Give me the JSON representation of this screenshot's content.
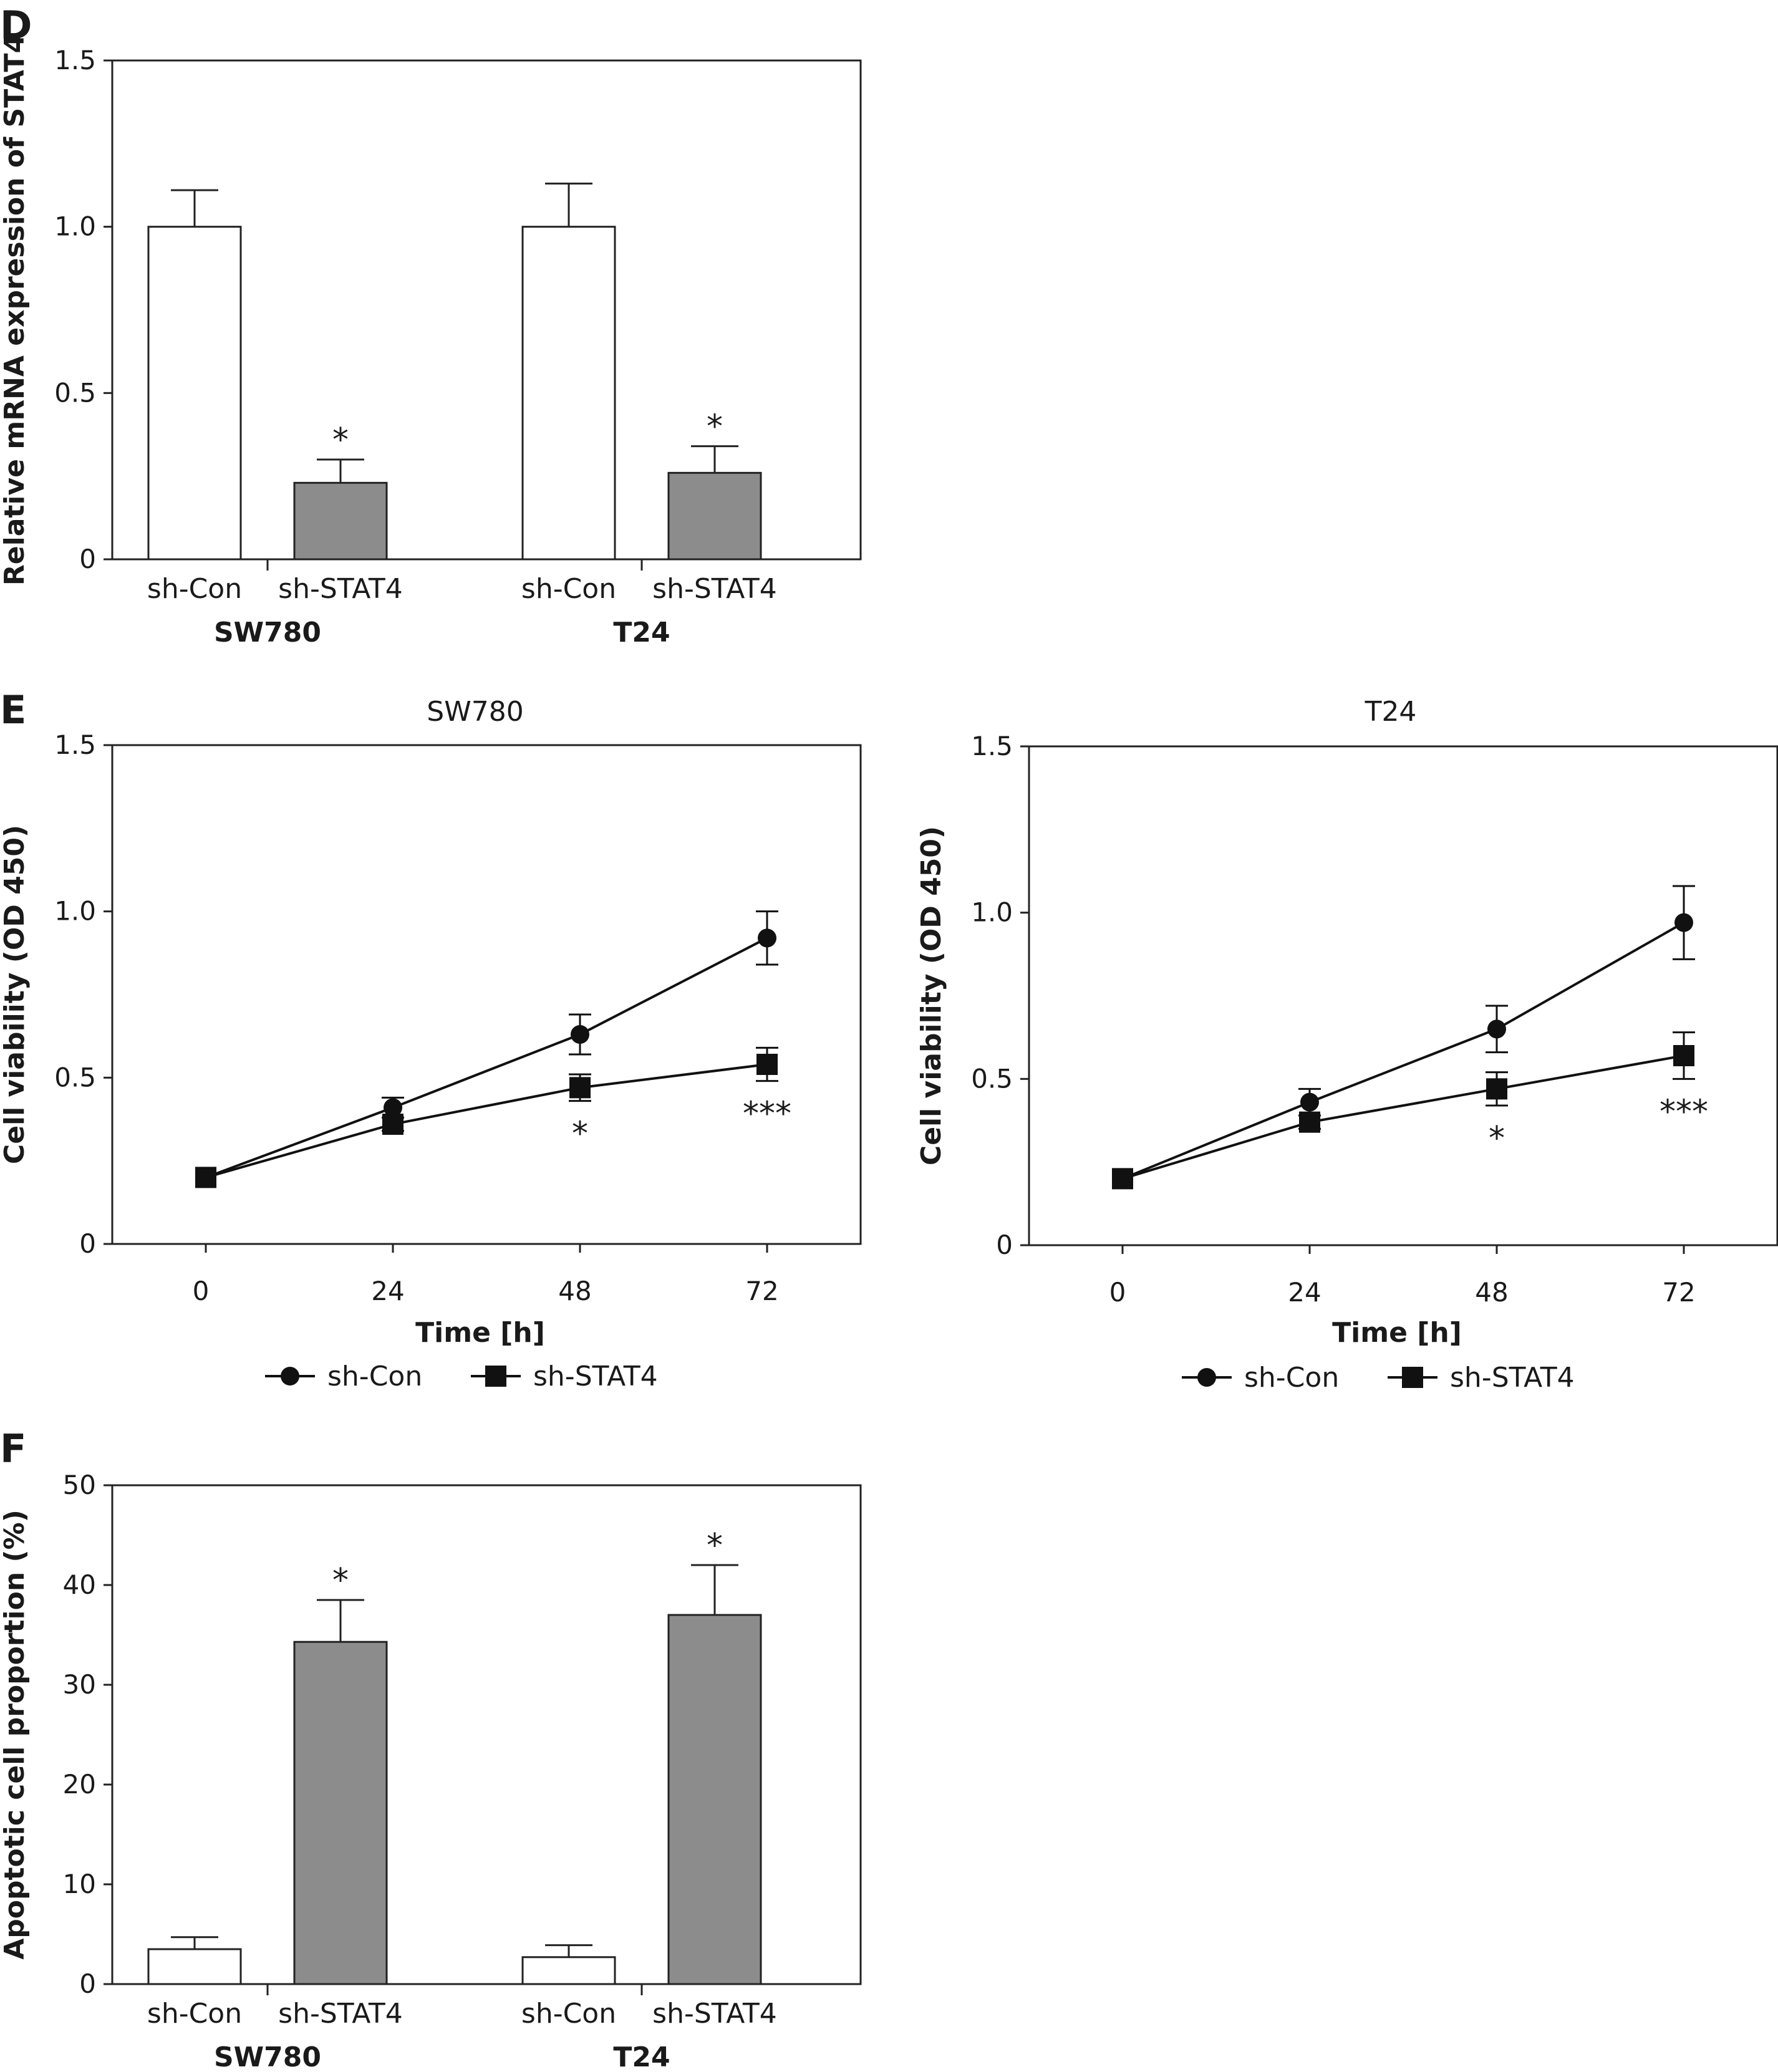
{
  "panels": [
    "D",
    "E",
    "F"
  ],
  "chart_data": [
    {
      "id": "D",
      "type": "bar",
      "title": "",
      "ylabel": "Relative mRNA expression of STAT4",
      "xlabel": "",
      "ylim": [
        0,
        1.5
      ],
      "yticks": [
        "0",
        "0.5",
        "1.0",
        "1.5"
      ],
      "groups": [
        "SW780",
        "T24"
      ],
      "categories": [
        "sh-Con",
        "sh-STAT4"
      ],
      "values": [
        [
          1.0,
          0.23
        ],
        [
          1.0,
          0.26
        ]
      ],
      "errors": [
        [
          0.11,
          0.07
        ],
        [
          0.13,
          0.08
        ]
      ],
      "annotations": [
        [
          "",
          "*"
        ],
        [
          "",
          "*"
        ]
      ],
      "bar_colors": [
        "#ffffff",
        "#8c8c8c"
      ],
      "grid": false
    },
    {
      "id": "E1",
      "type": "line",
      "title": "SW780",
      "xlabel": "Time [h]",
      "ylabel": "Cell viability (OD 450)",
      "x": [
        0,
        24,
        48,
        72
      ],
      "xticks": [
        "0",
        "24",
        "48",
        "72"
      ],
      "ylim": [
        0,
        1.5
      ],
      "yticks": [
        "0",
        "0.5",
        "1.0",
        "1.5"
      ],
      "series": [
        {
          "name": "sh-Con",
          "marker": "circle",
          "values": [
            0.2,
            0.41,
            0.63,
            0.92
          ],
          "errors": [
            0.0,
            0.03,
            0.06,
            0.08
          ]
        },
        {
          "name": "sh-STAT4",
          "marker": "square",
          "values": [
            0.2,
            0.36,
            0.47,
            0.54
          ],
          "errors": [
            0.0,
            0.02,
            0.04,
            0.05
          ]
        }
      ],
      "annotations": [
        "",
        "",
        "*",
        "***"
      ],
      "legend": "bottom",
      "grid": false
    },
    {
      "id": "E2",
      "type": "line",
      "title": "T24",
      "xlabel": "Time [h]",
      "ylabel": "Cell viability (OD 450)",
      "x": [
        0,
        24,
        48,
        72
      ],
      "xticks": [
        "0",
        "24",
        "48",
        "72"
      ],
      "ylim": [
        0,
        1.5
      ],
      "yticks": [
        "0",
        "0.5",
        "1.0",
        "1.5"
      ],
      "series": [
        {
          "name": "sh-Con",
          "marker": "circle",
          "values": [
            0.2,
            0.43,
            0.65,
            0.97
          ],
          "errors": [
            0.0,
            0.04,
            0.07,
            0.11
          ]
        },
        {
          "name": "sh-STAT4",
          "marker": "square",
          "values": [
            0.2,
            0.37,
            0.47,
            0.57
          ],
          "errors": [
            0.0,
            0.02,
            0.05,
            0.07
          ]
        }
      ],
      "annotations": [
        "",
        "",
        "*",
        "***"
      ],
      "legend": "bottom",
      "grid": false
    },
    {
      "id": "F",
      "type": "bar",
      "title": "",
      "ylabel": "Apoptotic cell proportion (%)",
      "xlabel": "",
      "ylim": [
        0,
        50
      ],
      "yticks": [
        "0",
        "10",
        "20",
        "30",
        "40",
        "50"
      ],
      "groups": [
        "SW780",
        "T24"
      ],
      "categories": [
        "sh-Con",
        "sh-STAT4"
      ],
      "values": [
        [
          3.5,
          34.3
        ],
        [
          2.7,
          37.0
        ]
      ],
      "errors": [
        [
          1.2,
          4.2
        ],
        [
          1.2,
          5.0
        ]
      ],
      "annotations": [
        [
          "",
          "*"
        ],
        [
          "",
          "*"
        ]
      ],
      "bar_colors": [
        "#ffffff",
        "#8c8c8c"
      ],
      "grid": false
    }
  ]
}
